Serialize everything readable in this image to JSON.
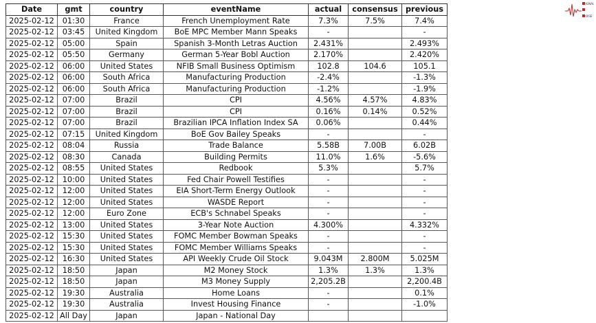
{
  "logo": {
    "text": [
      "SIGNAL",
      "2",
      "NOISE"
    ],
    "color": "#c0262d"
  },
  "columns": [
    "Date",
    "gmt",
    "country",
    "eventName",
    "actual",
    "consensus",
    "previous"
  ],
  "rows": [
    [
      "2025-02-12",
      "01:30",
      "France",
      "French Unemployment Rate",
      "7.3%",
      "7.5%",
      "7.4%"
    ],
    [
      "2025-02-12",
      "03:45",
      "United Kingdom",
      "BoE MPC Member Mann Speaks",
      "-",
      "",
      "-"
    ],
    [
      "2025-02-12",
      "05:00",
      "Spain",
      "Spanish 3-Month Letras Auction",
      "2.431%",
      "",
      "2.493%"
    ],
    [
      "2025-02-12",
      "05:50",
      "Germany",
      "German 5-Year Bobl Auction",
      "2.170%",
      "",
      "2.420%"
    ],
    [
      "2025-02-12",
      "06:00",
      "United States",
      "NFIB Small Business Optimism",
      "102.8",
      "104.6",
      "105.1"
    ],
    [
      "2025-02-12",
      "06:00",
      "South Africa",
      "Manufacturing Production",
      "-2.4%",
      "",
      "-1.3%"
    ],
    [
      "2025-02-12",
      "06:00",
      "South Africa",
      "Manufacturing Production",
      "-1.2%",
      "",
      "-1.9%"
    ],
    [
      "2025-02-12",
      "07:00",
      "Brazil",
      "CPI",
      "4.56%",
      "4.57%",
      "4.83%"
    ],
    [
      "2025-02-12",
      "07:00",
      "Brazil",
      "CPI",
      "0.16%",
      "0.14%",
      "0.52%"
    ],
    [
      "2025-02-12",
      "07:00",
      "Brazil",
      "Brazilian IPCA Inflation Index SA",
      "0.06%",
      "",
      "0.44%"
    ],
    [
      "2025-02-12",
      "07:15",
      "United Kingdom",
      "BoE Gov Bailey Speaks",
      "-",
      "",
      "-"
    ],
    [
      "2025-02-12",
      "08:04",
      "Russia",
      "Trade Balance",
      "5.58B",
      "7.00B",
      "6.02B"
    ],
    [
      "2025-02-12",
      "08:30",
      "Canada",
      "Building Permits",
      "11.0%",
      "1.6%",
      "-5.6%"
    ],
    [
      "2025-02-12",
      "08:55",
      "United States",
      "Redbook",
      "5.3%",
      "",
      "5.7%"
    ],
    [
      "2025-02-12",
      "10:00",
      "United States",
      "Fed Chair Powell Testifies",
      "-",
      "",
      "-"
    ],
    [
      "2025-02-12",
      "12:00",
      "United States",
      "EIA Short-Term Energy Outlook",
      "-",
      "",
      "-"
    ],
    [
      "2025-02-12",
      "12:00",
      "United States",
      "WASDE Report",
      "-",
      "",
      "-"
    ],
    [
      "2025-02-12",
      "12:00",
      "Euro Zone",
      "ECB's Schnabel Speaks",
      "-",
      "",
      "-"
    ],
    [
      "2025-02-12",
      "13:00",
      "United States",
      "3-Year Note Auction",
      "4.300%",
      "",
      "4.332%"
    ],
    [
      "2025-02-12",
      "15:30",
      "United States",
      "FOMC Member Bowman Speaks",
      "-",
      "",
      "-"
    ],
    [
      "2025-02-12",
      "15:30",
      "United States",
      "FOMC Member Williams Speaks",
      "-",
      "",
      "-"
    ],
    [
      "2025-02-12",
      "16:30",
      "United States",
      "API Weekly Crude Oil Stock",
      "9.043M",
      "2.800M",
      "5.025M"
    ],
    [
      "2025-02-12",
      "18:50",
      "Japan",
      "M2 Money Stock",
      "1.3%",
      "1.3%",
      "1.3%"
    ],
    [
      "2025-02-12",
      "18:50",
      "Japan",
      "M3 Money Supply",
      "2,205.2B",
      "",
      "2,200.4B"
    ],
    [
      "2025-02-12",
      "19:30",
      "Australia",
      "Home Loans",
      "-",
      "",
      "0.1%"
    ],
    [
      "2025-02-12",
      "19:30",
      "Australia",
      "Invest Housing Finance",
      "-",
      "",
      "-1.0%"
    ],
    [
      "2025-02-12",
      "All Day",
      "Japan",
      "Japan - National Day",
      "",
      "",
      ""
    ]
  ]
}
